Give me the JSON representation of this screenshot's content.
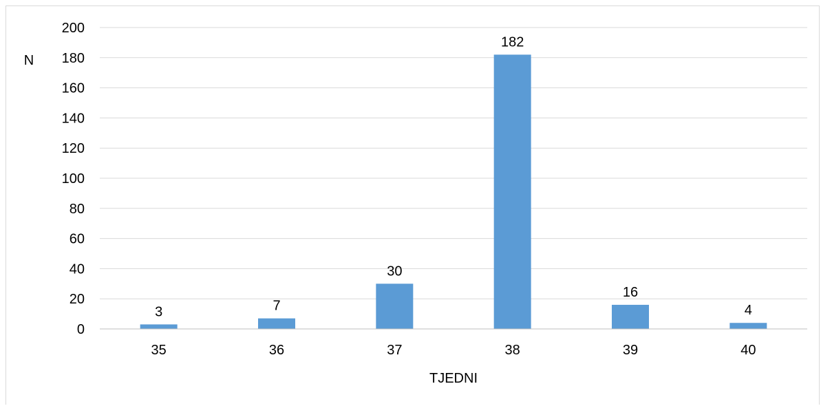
{
  "chart_data": {
    "type": "bar",
    "categories": [
      "35",
      "36",
      "37",
      "38",
      "39",
      "40"
    ],
    "values": [
      3,
      7,
      30,
      182,
      16,
      4
    ],
    "data_labels": [
      "3",
      "7",
      "30",
      "182",
      "16",
      "4"
    ],
    "xlabel": "TJEDNI",
    "ylabel": "N",
    "ylim": [
      0,
      200
    ],
    "yticks": [
      0,
      20,
      40,
      60,
      80,
      100,
      120,
      140,
      160,
      180,
      200
    ],
    "ytick_labels": [
      "0",
      "20",
      "40",
      "60",
      "80",
      "100",
      "120",
      "140",
      "160",
      "180",
      "200"
    ],
    "grid": true,
    "legend": "none",
    "bar_color": "#5b9bd5",
    "grid_color": "#d9d9d9"
  }
}
